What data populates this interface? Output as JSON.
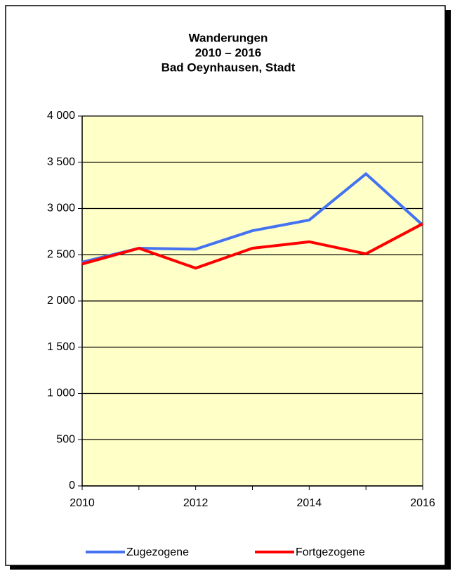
{
  "chart_data": {
    "type": "line",
    "title": [
      "Wanderungen",
      "2010 – 2016",
      "Bad Oeynhausen, Stadt"
    ],
    "x": [
      2010,
      2011,
      2012,
      2013,
      2014,
      2015,
      2016
    ],
    "series": [
      {
        "name": "Zugezogene",
        "color": "#4472f0",
        "values": [
          2420,
          2570,
          2560,
          2760,
          2875,
          3375,
          2820
        ]
      },
      {
        "name": "Fortgezogene",
        "color": "#ff0000",
        "values": [
          2400,
          2570,
          2355,
          2570,
          2640,
          2510,
          2835
        ]
      }
    ],
    "xlim": [
      2010,
      2016
    ],
    "xticks": [
      2010,
      2012,
      2014,
      2016
    ],
    "ylim": [
      0,
      4000
    ],
    "yticks": [
      0,
      500,
      {
        "value": 1000,
        "label": "1 000"
      },
      {
        "value": 1500,
        "label": "1 500"
      },
      {
        "value": 2000,
        "label": "2 000"
      },
      {
        "value": 2500,
        "label": "2 500"
      },
      {
        "value": 3000,
        "label": "3 000"
      },
      {
        "value": 3500,
        "label": "3 500"
      },
      {
        "value": 4000,
        "label": "4 000"
      }
    ],
    "grid": true,
    "plot_background": "#ffffc8",
    "legend": "bottom"
  }
}
